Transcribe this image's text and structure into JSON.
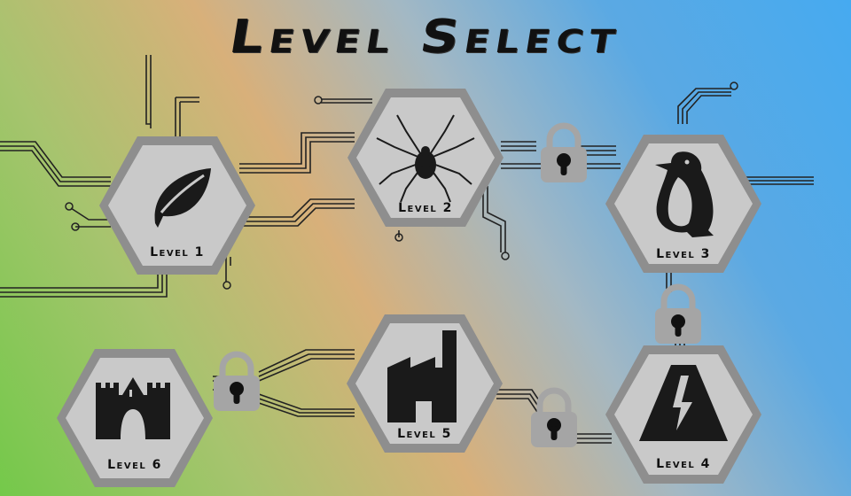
{
  "title": "Level Select",
  "levels": [
    {
      "label": "Level 1",
      "icon": "leaf-icon",
      "locked": false
    },
    {
      "label": "Level 2",
      "icon": "spider-icon",
      "locked": false
    },
    {
      "label": "Level 3",
      "icon": "penguin-icon",
      "locked": false
    },
    {
      "label": "Level 4",
      "icon": "road-icon",
      "locked": false
    },
    {
      "label": "Level 5",
      "icon": "factory-icon",
      "locked": false
    },
    {
      "label": "Level 6",
      "icon": "castle-icon",
      "locked": false
    }
  ],
  "locks": [
    {
      "between": "Level 2 - Level 3",
      "icon": "padlock-icon"
    },
    {
      "between": "Level 3 - Level 4",
      "icon": "padlock-icon"
    },
    {
      "between": "Level 4 - Level 5",
      "icon": "padlock-icon"
    },
    {
      "between": "Level 5 - Level 6",
      "icon": "padlock-icon"
    }
  ],
  "colors": {
    "hex_fill": "#c8c8c8",
    "hex_border": "#8c8c8c",
    "icon": "#1a1a1a",
    "lock": "#a8a8a8",
    "circuit": "#222222"
  }
}
